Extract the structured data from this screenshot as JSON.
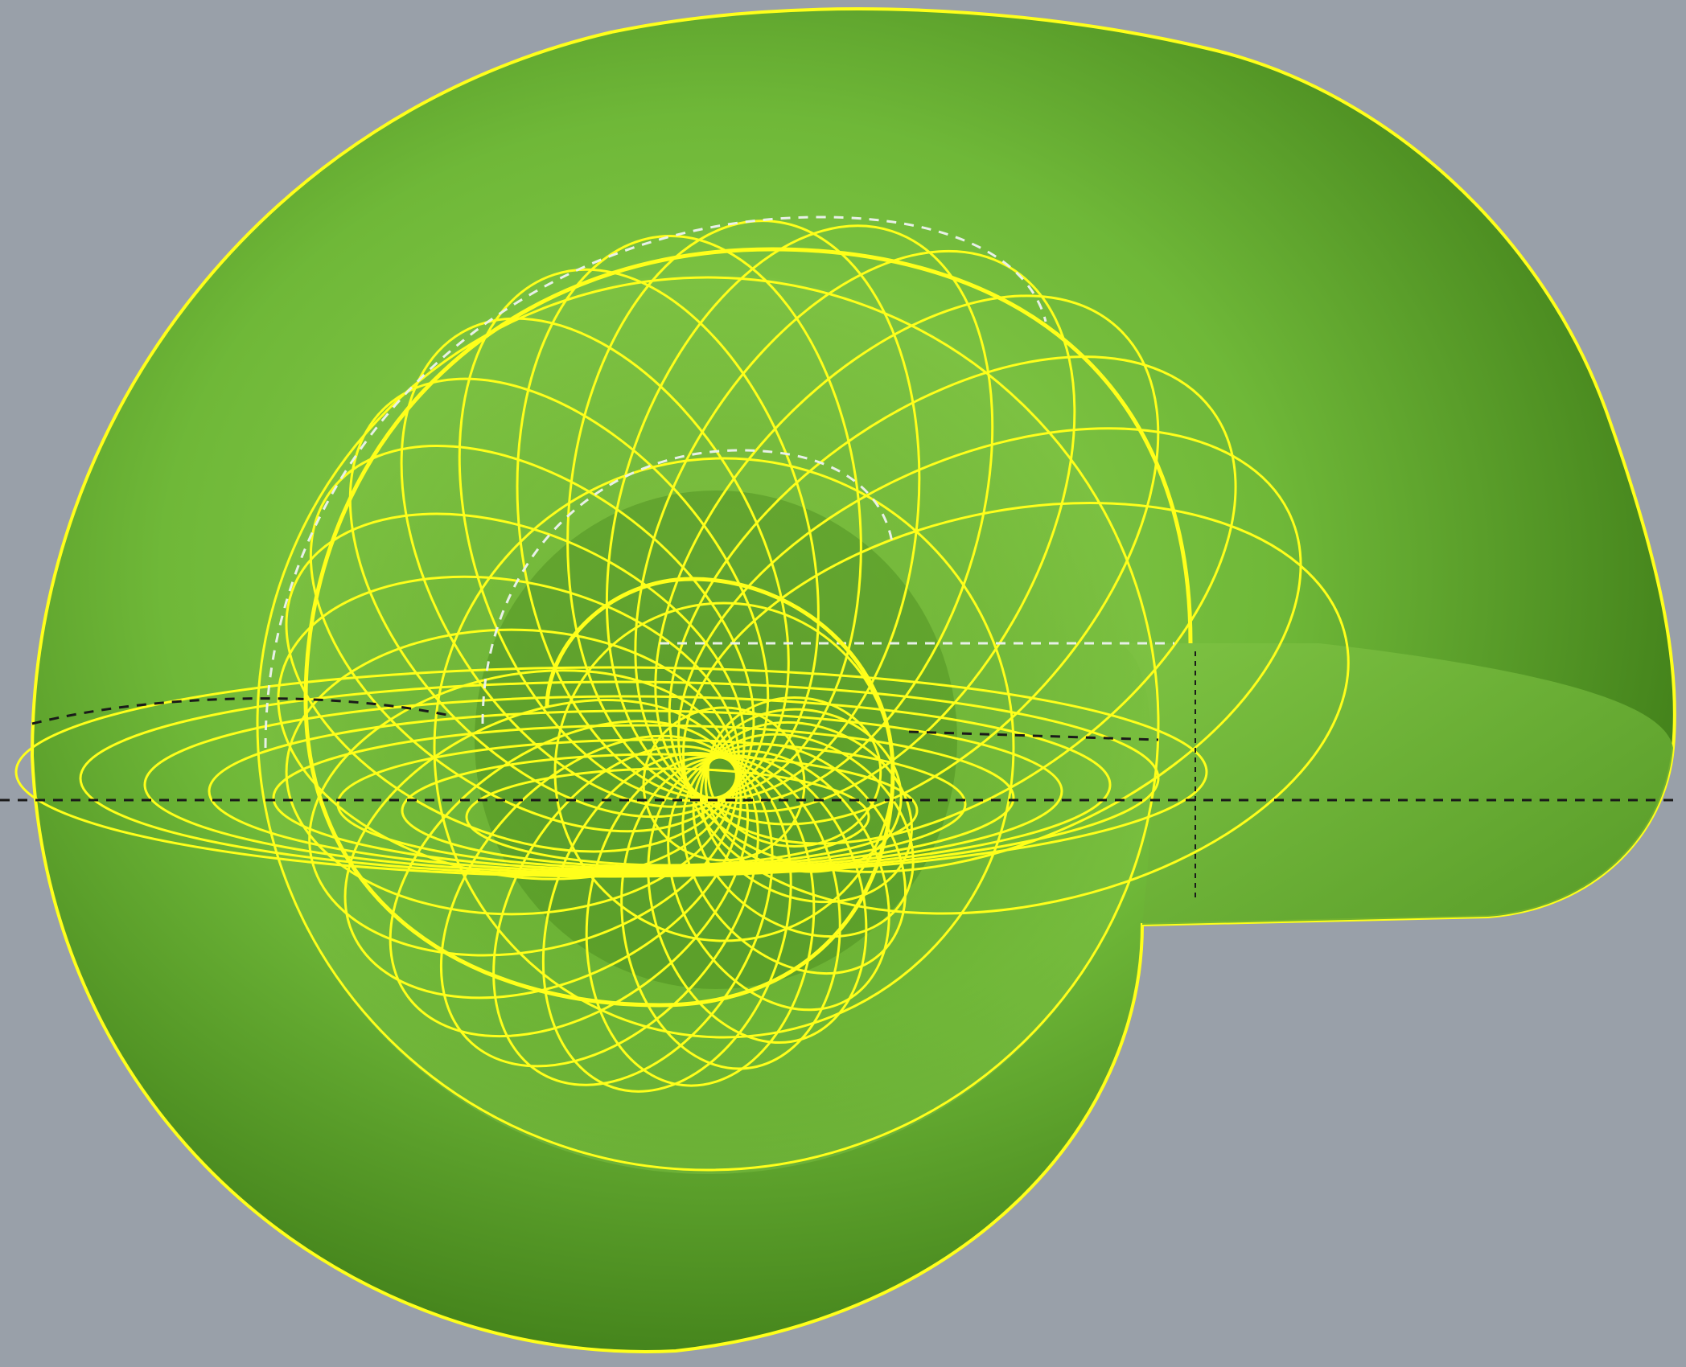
{
  "viewport": {
    "background": "#99a0a9"
  },
  "shell": {
    "surface_color_light": "#8fd14f",
    "surface_color_mid": "#6fb838",
    "surface_color_dark": "#3f7d18",
    "wireframe_color": "#ffff1a",
    "guide_white": "#e8f0e8",
    "guide_black": "#1a1a1a"
  }
}
